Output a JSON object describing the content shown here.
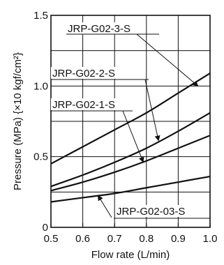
{
  "chart_data": {
    "type": "line",
    "xlabel": "Flow rate (L/min)",
    "ylabel": "Pressure (MPa) {×10 kgf/cm²}",
    "xlim": [
      0.5,
      1.0
    ],
    "ylim": [
      0,
      1.5
    ],
    "x_ticks": [
      0.5,
      0.6,
      0.7,
      0.8,
      0.9,
      1.0
    ],
    "x_tick_labels": [
      "0.5",
      "0.6",
      "0.7",
      "0.8",
      "0.9",
      "1.0"
    ],
    "y_ticks": [
      0,
      0.5,
      1.0,
      1.5
    ],
    "y_tick_labels": [
      "0",
      "0.5",
      "1.0",
      "1.5"
    ],
    "grid": true,
    "series": [
      {
        "name": "JRP-G02-3-S",
        "x": [
          0.5,
          0.6,
          0.7,
          0.8,
          0.9,
          1.0
        ],
        "values": [
          0.45,
          0.57,
          0.69,
          0.81,
          0.95,
          1.09
        ]
      },
      {
        "name": "JRP-G02-2-S",
        "x": [
          0.5,
          0.6,
          0.7,
          0.8,
          0.9,
          1.0
        ],
        "values": [
          0.29,
          0.37,
          0.46,
          0.56,
          0.68,
          0.81
        ]
      },
      {
        "name": "JRP-G02-1-S",
        "x": [
          0.5,
          0.6,
          0.7,
          0.8,
          0.9,
          1.0
        ],
        "values": [
          0.26,
          0.32,
          0.39,
          0.47,
          0.56,
          0.65
        ]
      },
      {
        "name": "JRP-G02-03-S",
        "x": [
          0.5,
          0.6,
          0.7,
          0.8,
          0.9,
          1.0
        ],
        "values": [
          0.18,
          0.21,
          0.24,
          0.28,
          0.32,
          0.36
        ]
      }
    ]
  }
}
